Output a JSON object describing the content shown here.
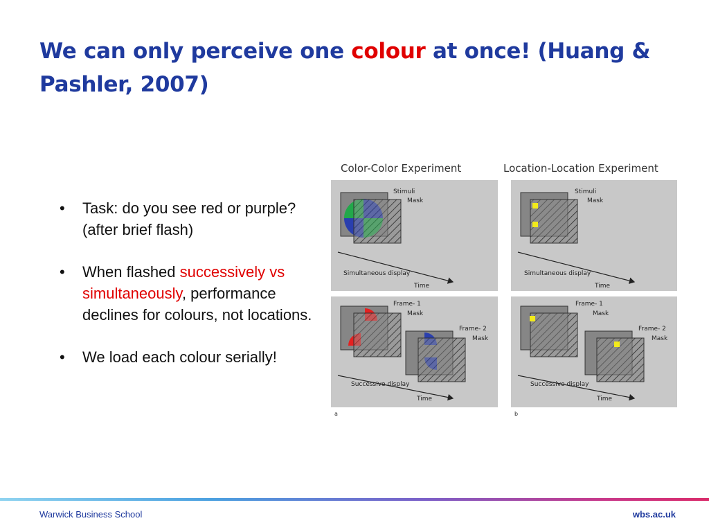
{
  "slide": {
    "title_before": "We can only perceive one ",
    "title_highlight": "colour",
    "title_after": " at once! (Huang & Pashler, 2007)"
  },
  "bullets": {
    "b1": "Task: do you see red or purple? (after brief flash)",
    "b2_before": "When flashed ",
    "b2_highlight": "successively vs simultaneously",
    "b2_after": ", performance declines for colours, not locations.",
    "b3": "We load each colour serially!"
  },
  "figure": {
    "heading_a": "Color-Color Experiment",
    "heading_b": "Location-Location Experiment",
    "stimuli": "Stimuli",
    "mask": "Mask",
    "frame1": "Frame- 1",
    "frame2": "Frame- 2",
    "simultaneous": "Simultaneous display",
    "successive": "Successive display",
    "time": "Time",
    "label_a": "a",
    "label_b": "b",
    "colors": {
      "panel": "#c8c8c8",
      "square": "#7a7a7a",
      "green": "#22a84a",
      "blue": "#2a3fae",
      "red": "#e52020",
      "yellow": "#f2ea1a"
    }
  },
  "footer": {
    "left": "Warwick Business School",
    "right": "wbs.ac.uk"
  }
}
